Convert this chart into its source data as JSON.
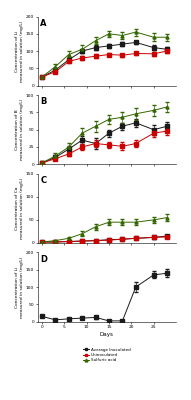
{
  "days": [
    0,
    3,
    6,
    9,
    12,
    15,
    18,
    21,
    25,
    28
  ],
  "colors": {
    "black": "#1a1a1a",
    "red": "#cc0000",
    "green": "#336600"
  },
  "legend": {
    "black": "Average Inoculated",
    "red": "Uninoculated",
    "green": "Sulfuric acid"
  },
  "panels": [
    {
      "label": "A",
      "ylabel": "Concentration of Li\nmeasured in solution (mg/L)",
      "ylim": [
        0,
        200
      ],
      "yticks": [
        0,
        50,
        100,
        150,
        200
      ],
      "black_y": [
        25,
        45,
        75,
        100,
        110,
        115,
        120,
        125,
        110,
        105
      ],
      "black_e": [
        3,
        5,
        8,
        6,
        7,
        5,
        6,
        5,
        7,
        8
      ],
      "red_y": [
        25,
        40,
        70,
        80,
        85,
        90,
        88,
        93,
        92,
        100
      ],
      "red_e": [
        2,
        4,
        5,
        5,
        6,
        5,
        4,
        5,
        6,
        6
      ],
      "green_y": [
        25,
        55,
        90,
        105,
        130,
        150,
        145,
        155,
        140,
        140
      ],
      "green_e": [
        4,
        8,
        10,
        12,
        10,
        8,
        9,
        10,
        12,
        10
      ],
      "show_red": true,
      "show_green": true
    },
    {
      "label": "B",
      "ylabel": "Concentration of B\nmeasured in solution (mg/L)",
      "ylim": [
        0,
        100
      ],
      "yticks": [
        0,
        25,
        50,
        75,
        100
      ],
      "black_y": [
        2,
        10,
        22,
        35,
        30,
        45,
        55,
        60,
        50,
        55
      ],
      "black_e": [
        1,
        3,
        4,
        6,
        8,
        5,
        5,
        6,
        7,
        6
      ],
      "red_y": [
        2,
        8,
        15,
        25,
        30,
        28,
        26,
        30,
        45,
        48
      ],
      "red_e": [
        1,
        2,
        3,
        4,
        5,
        4,
        6,
        5,
        6,
        5
      ],
      "green_y": [
        2,
        12,
        25,
        45,
        55,
        65,
        68,
        73,
        78,
        83
      ],
      "green_e": [
        2,
        4,
        6,
        8,
        8,
        7,
        8,
        9,
        8,
        7
      ],
      "show_red": true,
      "show_green": true
    },
    {
      "label": "C",
      "ylabel": "Concentration of Ca\nmeasured in solution (mg/L)",
      "ylim": [
        0,
        150
      ],
      "yticks": [
        0,
        50,
        100,
        150
      ],
      "black_y": [
        2,
        2,
        3,
        4,
        5,
        7,
        8,
        10,
        12,
        15
      ],
      "black_e": [
        0.5,
        0.5,
        1,
        1,
        1,
        2,
        2,
        2,
        3,
        3
      ],
      "red_y": [
        2,
        2,
        3,
        4,
        5,
        6,
        8,
        10,
        12,
        13
      ],
      "red_e": [
        0.5,
        0.5,
        1,
        1,
        1,
        1,
        2,
        2,
        2,
        3
      ],
      "green_y": [
        2,
        5,
        10,
        20,
        35,
        45,
        45,
        45,
        50,
        55
      ],
      "green_e": [
        1,
        2,
        3,
        5,
        6,
        7,
        6,
        6,
        7,
        7
      ],
      "show_red": true,
      "show_green": true
    },
    {
      "label": "D",
      "ylabel": "Concentration of Li\nmeasured in solution (mg/L)",
      "ylim": [
        0,
        200
      ],
      "yticks": [
        0,
        50,
        100,
        150,
        200
      ],
      "black_y": [
        15,
        5,
        8,
        10,
        12,
        2,
        2,
        100,
        135,
        140
      ],
      "black_e": [
        2,
        2,
        3,
        3,
        4,
        1,
        1,
        15,
        10,
        12
      ],
      "red_y": [
        null,
        null,
        null,
        null,
        null,
        null,
        null,
        null,
        null,
        null
      ],
      "red_e": [
        0,
        0,
        0,
        0,
        0,
        0,
        0,
        0,
        0,
        0
      ],
      "green_y": [
        null,
        null,
        null,
        null,
        null,
        null,
        null,
        null,
        null,
        null
      ],
      "green_e": [
        0,
        0,
        0,
        0,
        0,
        0,
        0,
        0,
        0,
        0
      ],
      "show_red": false,
      "show_green": false
    }
  ]
}
